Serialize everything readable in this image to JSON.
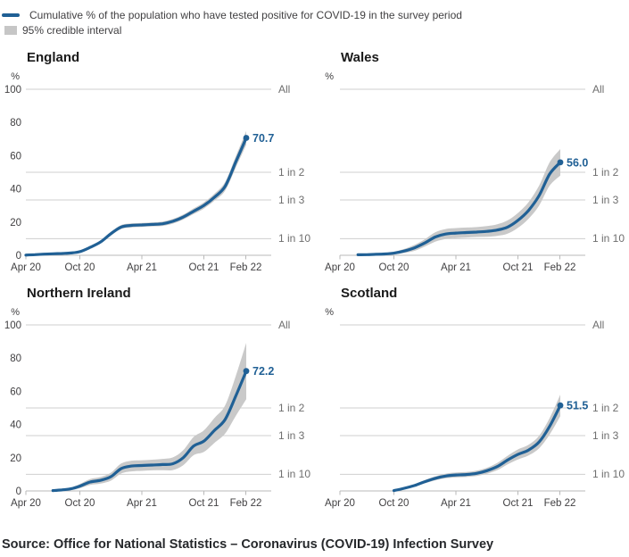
{
  "legend": {
    "line": "Cumulative % of the population who have tested positive for COVID-19 in the survey period",
    "band": "95% credible interval"
  },
  "colors": {
    "line": "#206095",
    "band": "#c9c9c9"
  },
  "axis": {
    "y_unit": "%",
    "y_ticks": [
      "100",
      "80",
      "60",
      "40",
      "20",
      "0"
    ],
    "x_labels": [
      "Apr 20",
      "Oct 20",
      "Apr 21",
      "Oct 21",
      "Feb 22"
    ],
    "right_labels": [
      "All",
      "1 in 2",
      "1 in 3",
      "1 in 10"
    ],
    "right_values": [
      100,
      50,
      33.3,
      10
    ],
    "ylim": [
      0,
      100
    ]
  },
  "source": "Source: Office for National Statistics – Coronavirus (COVID-19) Infection Survey",
  "chart_data": [
    {
      "type": "line",
      "title": "England",
      "end_label": "70.7",
      "x_unit": "months since Apr 2020",
      "x": [
        0,
        1,
        2,
        3,
        4,
        5,
        6,
        7,
        8,
        9,
        10,
        11,
        12,
        13,
        14,
        15,
        16,
        17,
        18,
        19,
        20,
        21,
        22
      ],
      "values": [
        0.1,
        0.4,
        0.7,
        0.9,
        1.1,
        1.4,
        2.2,
        4.8,
        8,
        13,
        17,
        18,
        18.3,
        18.6,
        19,
        20.5,
        23,
        26.5,
        30,
        35,
        41.5,
        56,
        70.7
      ],
      "ci_low": [
        0,
        0.1,
        0.3,
        0.5,
        0.7,
        0.9,
        1.7,
        4.1,
        7.1,
        11.9,
        15.8,
        16.8,
        17.1,
        17.4,
        17.7,
        19.1,
        21.5,
        24.8,
        28.1,
        32.9,
        38.9,
        52.6,
        66.5
      ],
      "ci_high": [
        0.4,
        0.7,
        1.1,
        1.3,
        1.5,
        1.9,
        2.7,
        5.5,
        8.9,
        14.1,
        18.2,
        19.2,
        19.5,
        19.8,
        20.3,
        21.9,
        24.5,
        28.2,
        31.9,
        37.1,
        44.1,
        59.4,
        74.9
      ]
    },
    {
      "type": "line",
      "title": "Wales",
      "end_label": "56.0",
      "x_unit": "months since Apr 2020",
      "x": [
        2,
        3,
        4,
        5,
        6,
        7,
        8,
        9,
        10,
        11,
        12,
        13,
        14,
        15,
        16,
        17,
        18,
        19,
        20,
        21,
        22
      ],
      "values": [
        0.3,
        0.4,
        0.6,
        0.8,
        1.3,
        2.6,
        4.5,
        7.5,
        11,
        12.8,
        13.4,
        13.7,
        14,
        14.4,
        15.2,
        17,
        21,
        27,
        36,
        49,
        56
      ],
      "ci_low": [
        0,
        0,
        0.1,
        0.2,
        0.5,
        1.4,
        2.7,
        5.3,
        8.2,
        9.8,
        10.4,
        10.7,
        11,
        11.2,
        11.7,
        13,
        16.5,
        22,
        30,
        42,
        48
      ],
      "ci_high": [
        0.6,
        0.8,
        1.1,
        1.4,
        2.1,
        3.8,
        6.3,
        9.7,
        13.8,
        15.8,
        16.4,
        16.7,
        17,
        17.6,
        18.7,
        21,
        25.5,
        32,
        42,
        56,
        64
      ]
    },
    {
      "type": "line",
      "title": "Northern Ireland",
      "end_label": "72.2",
      "x_unit": "months since Apr 2020",
      "x": [
        3,
        4,
        5,
        6,
        7,
        8,
        9,
        10,
        11,
        12,
        13,
        14,
        15,
        16,
        17,
        18,
        19,
        20,
        21,
        22
      ],
      "values": [
        0.2,
        0.6,
        1.3,
        2.9,
        5.4,
        6.4,
        8.6,
        13.5,
        15,
        15.3,
        15.6,
        15.9,
        16.4,
        20,
        27,
        30,
        36.5,
        43,
        57,
        72.2
      ],
      "ci_low": [
        0,
        0.1,
        0.5,
        1.6,
        3.6,
        4.4,
        6.2,
        10.5,
        11.8,
        12.1,
        12.4,
        12.5,
        12.6,
        15.5,
        21.5,
        23.5,
        29,
        34.5,
        45,
        55.2
      ],
      "ci_high": [
        0.4,
        1.1,
        2.1,
        4.2,
        7.2,
        8.4,
        11,
        16.5,
        18.2,
        18.5,
        18.8,
        19.3,
        20.2,
        24.5,
        32.5,
        36.5,
        44,
        51.5,
        69,
        89.2
      ]
    },
    {
      "type": "line",
      "title": "Scotland",
      "end_label": "51.5",
      "x_unit": "months since Apr 2020",
      "x": [
        6,
        7,
        8,
        9,
        10,
        11,
        12,
        13,
        14,
        15,
        16,
        17,
        18,
        19,
        20,
        21,
        22
      ],
      "values": [
        0.2,
        1.6,
        3.3,
        5.6,
        7.6,
        9,
        9.6,
        9.9,
        10.6,
        12.2,
        14.7,
        18.6,
        22,
        24.6,
        29.5,
        39,
        51.5
      ],
      "ci_low": [
        0,
        1.2,
        2.6,
        4.6,
        6.4,
        7.6,
        8.1,
        8.4,
        9,
        10.4,
        12.5,
        16,
        19,
        21.4,
        25.7,
        34,
        45
      ],
      "ci_high": [
        0.4,
        2,
        4,
        6.6,
        8.8,
        10.4,
        11.1,
        11.4,
        12.2,
        14,
        16.9,
        21.2,
        25,
        27.8,
        33.3,
        44,
        58
      ]
    }
  ]
}
